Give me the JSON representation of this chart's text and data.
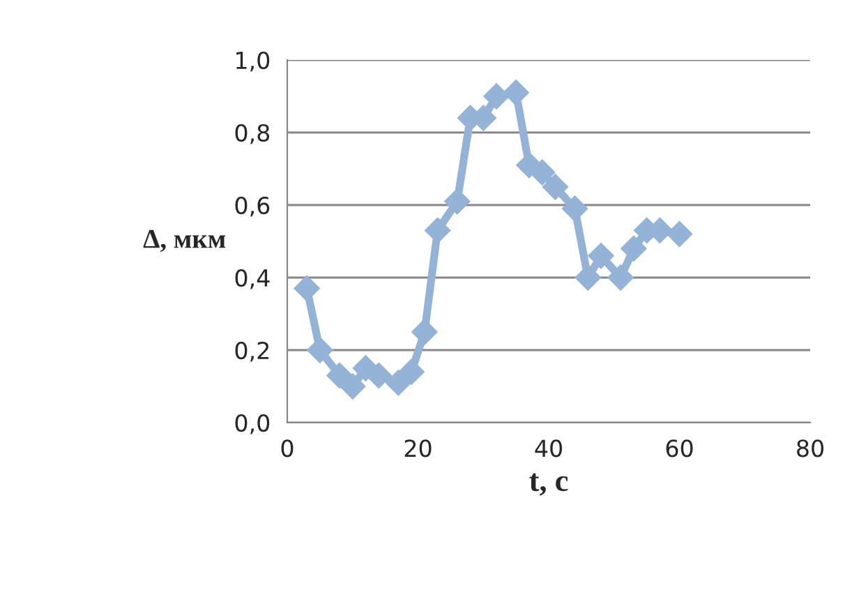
{
  "chart_data": {
    "type": "line",
    "xlabel": "t, с",
    "ylabel": "Δ, мкм",
    "x": [
      3,
      5,
      8,
      10,
      12,
      14,
      17,
      19,
      21,
      23,
      26,
      28,
      30,
      32,
      35,
      37,
      39,
      41,
      44,
      46,
      48,
      51,
      53,
      55,
      57,
      60
    ],
    "series": [
      {
        "color": "#95b3d7",
        "values": [
          0.37,
          0.2,
          0.13,
          0.1,
          0.15,
          0.13,
          0.11,
          0.14,
          0.25,
          0.53,
          0.61,
          0.84,
          0.84,
          0.9,
          0.91,
          0.71,
          0.69,
          0.65,
          0.59,
          0.4,
          0.46,
          0.4,
          0.48,
          0.53,
          0.53,
          0.52
        ]
      }
    ],
    "xlim": [
      0,
      80
    ],
    "xticks": [
      0,
      20,
      40,
      60,
      80
    ],
    "ylim": [
      0,
      1.0
    ],
    "yticks": [
      {
        "value": 0,
        "label": "0,0"
      },
      {
        "value": 0.2,
        "label": "0,2"
      },
      {
        "value": 0.4,
        "label": "0,4"
      },
      {
        "value": 0.6,
        "label": "0,6"
      },
      {
        "value": 0.8,
        "label": "0,8"
      },
      {
        "value": 1.0,
        "label": "1,0"
      }
    ],
    "grid": "y",
    "marker": "diamond",
    "line_style": "solid"
  }
}
